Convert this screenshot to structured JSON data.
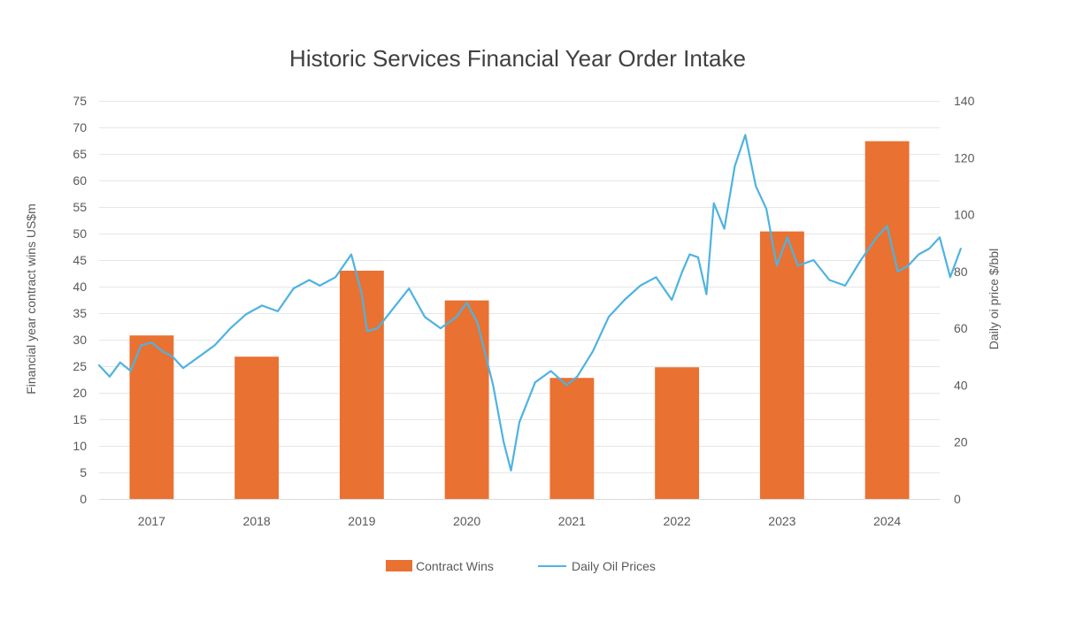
{
  "chart_data": {
    "type": "bar+line",
    "title": "Historic Services Financial Year Order Intake",
    "categories": [
      "2017",
      "2018",
      "2019",
      "2020",
      "2021",
      "2022",
      "2023",
      "2024"
    ],
    "y_left": {
      "label": "Financial year contract wins US$m",
      "ylim": [
        0,
        75
      ],
      "ticks": [
        0,
        5,
        10,
        15,
        20,
        25,
        30,
        35,
        40,
        45,
        50,
        55,
        60,
        65,
        70,
        75
      ]
    },
    "y_right": {
      "label": "Daily oi price $/bbl",
      "ylim": [
        0,
        140
      ],
      "ticks": [
        0,
        20,
        40,
        60,
        80,
        100,
        120,
        140
      ]
    },
    "series": [
      {
        "name": "Contract Wins",
        "type": "bar",
        "axis": "left",
        "color": "#E97132",
        "values": [
          30.8,
          26.8,
          43.0,
          37.4,
          22.8,
          24.8,
          50.4,
          67.4
        ]
      },
      {
        "name": "Daily Oil Prices",
        "type": "line",
        "axis": "right",
        "color": "#4EB3E0",
        "x": [
          2016.5,
          2016.6,
          2016.7,
          2016.8,
          2016.9,
          2017.0,
          2017.1,
          2017.2,
          2017.3,
          2017.45,
          2017.6,
          2017.75,
          2017.9,
          2018.05,
          2018.2,
          2018.35,
          2018.5,
          2018.6,
          2018.75,
          2018.9,
          2019.0,
          2019.05,
          2019.15,
          2019.3,
          2019.45,
          2019.6,
          2019.75,
          2019.9,
          2020.0,
          2020.1,
          2020.25,
          2020.35,
          2020.42,
          2020.5,
          2020.65,
          2020.8,
          2020.95,
          2021.05,
          2021.2,
          2021.35,
          2021.5,
          2021.65,
          2021.8,
          2021.95,
          2022.05,
          2022.12,
          2022.2,
          2022.28,
          2022.35,
          2022.45,
          2022.55,
          2022.65,
          2022.75,
          2022.85,
          2022.95,
          2023.05,
          2023.15,
          2023.3,
          2023.45,
          2023.6,
          2023.75,
          2023.9,
          2024.0,
          2024.1,
          2024.2,
          2024.3,
          2024.4,
          2024.5,
          2024.6,
          2024.7
        ],
        "values": [
          47,
          43,
          48,
          45,
          54,
          55,
          52,
          50,
          46,
          50,
          54,
          60,
          65,
          68,
          66,
          74,
          77,
          75,
          78,
          86,
          72,
          59,
          60,
          67,
          74,
          64,
          60,
          64,
          69,
          62,
          40,
          20,
          10,
          27,
          41,
          45,
          40,
          43,
          52,
          64,
          70,
          75,
          78,
          70,
          80,
          86,
          85,
          72,
          104,
          95,
          117,
          128,
          110,
          102,
          82,
          92,
          82,
          84,
          77,
          75,
          84,
          92,
          96,
          80,
          82,
          86,
          88,
          92,
          78,
          88
        ]
      }
    ],
    "legend": {
      "position": "bottom"
    }
  }
}
